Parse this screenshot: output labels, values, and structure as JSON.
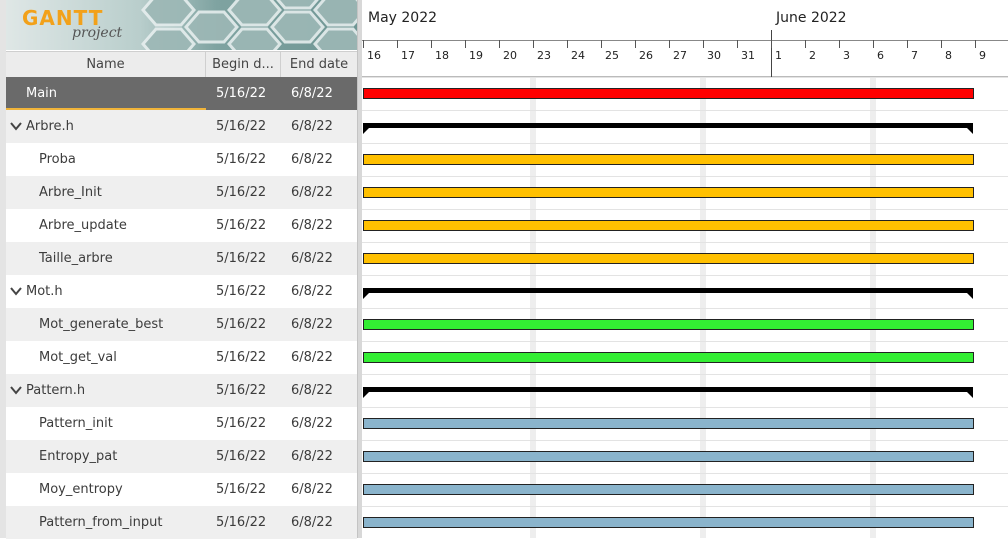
{
  "app": {
    "logo_text": "GANTT",
    "logo_subtitle": "project"
  },
  "columns": {
    "name": "Name",
    "begin": "Begin d...",
    "end": "End date"
  },
  "tasks": [
    {
      "name": "Main",
      "begin": "5/16/22",
      "end": "6/8/22",
      "level": 0,
      "type": "task",
      "color": "#ff0000",
      "selected": true
    },
    {
      "name": "Arbre.h",
      "begin": "5/16/22",
      "end": "6/8/22",
      "level": 0,
      "type": "group",
      "expanded": true
    },
    {
      "name": "Proba",
      "begin": "5/16/22",
      "end": "6/8/22",
      "level": 1,
      "type": "task",
      "color": "#ffc000"
    },
    {
      "name": "Arbre_Init",
      "begin": "5/16/22",
      "end": "6/8/22",
      "level": 1,
      "type": "task",
      "color": "#ffc000"
    },
    {
      "name": "Arbre_update",
      "begin": "5/16/22",
      "end": "6/8/22",
      "level": 1,
      "type": "task",
      "color": "#ffc000"
    },
    {
      "name": "Taille_arbre",
      "begin": "5/16/22",
      "end": "6/8/22",
      "level": 1,
      "type": "task",
      "color": "#ffc000"
    },
    {
      "name": "Mot.h",
      "begin": "5/16/22",
      "end": "6/8/22",
      "level": 0,
      "type": "group",
      "expanded": true
    },
    {
      "name": "Mot_generate_best",
      "begin": "5/16/22",
      "end": "6/8/22",
      "level": 1,
      "type": "task",
      "color": "#33ee33"
    },
    {
      "name": "Mot_get_val",
      "begin": "5/16/22",
      "end": "6/8/22",
      "level": 1,
      "type": "task",
      "color": "#33ee33"
    },
    {
      "name": "Pattern.h",
      "begin": "5/16/22",
      "end": "6/8/22",
      "level": 0,
      "type": "group",
      "expanded": true
    },
    {
      "name": "Pattern_init",
      "begin": "5/16/22",
      "end": "6/8/22",
      "level": 1,
      "type": "task",
      "color": "#8ab4cc"
    },
    {
      "name": "Entropy_pat",
      "begin": "5/16/22",
      "end": "6/8/22",
      "level": 1,
      "type": "task",
      "color": "#8ab4cc"
    },
    {
      "name": "Moy_entropy",
      "begin": "5/16/22",
      "end": "6/8/22",
      "level": 1,
      "type": "task",
      "color": "#8ab4cc"
    },
    {
      "name": "Pattern_from_input",
      "begin": "5/16/22",
      "end": "6/8/22",
      "level": 1,
      "type": "task",
      "color": "#8ab4cc"
    }
  ],
  "timeline": {
    "months": [
      {
        "label": "May 2022",
        "first_day_index": 0
      },
      {
        "label": "June 2022",
        "first_day_index": 12
      }
    ],
    "days": [
      "16",
      "17",
      "18",
      "19",
      "20",
      "23",
      "24",
      "25",
      "26",
      "27",
      "30",
      "31",
      "1",
      "2",
      "3",
      "6",
      "7",
      "8",
      "9"
    ],
    "weekend_after_index": [
      4,
      9,
      14
    ]
  },
  "colors": {
    "selected_row": "#6a6a6a",
    "selection_accent": "#f0b43a",
    "group_bar": "#000000",
    "weekend_band": "#eeeeee"
  }
}
